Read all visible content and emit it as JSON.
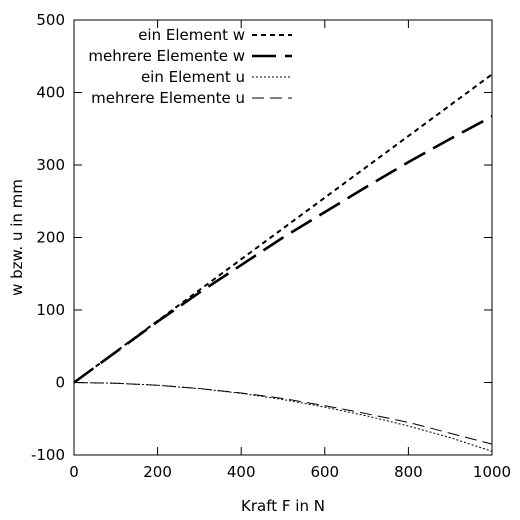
{
  "chart_data": {
    "type": "line",
    "title": "",
    "xlabel": "Kraft F in N",
    "ylabel": "w bzw. u in mm",
    "xlim": [
      0,
      1000
    ],
    "ylim": [
      -100,
      500
    ],
    "xticks": [
      0,
      200,
      400,
      600,
      800,
      1000
    ],
    "yticks": [
      -100,
      0,
      100,
      200,
      300,
      400,
      500
    ],
    "xtick_labels": [
      "0",
      "200",
      "400",
      "600",
      "800",
      "1000"
    ],
    "ytick_labels": [
      "-100",
      "0",
      "100",
      "200",
      "300",
      "400",
      "500"
    ],
    "grid": false,
    "legend_position": "top-left",
    "series_color": "#000000",
    "series": [
      {
        "name": "ein Element w",
        "style": "short-dash",
        "x": [
          0,
          100,
          200,
          300,
          400,
          500,
          600,
          700,
          800,
          900,
          1000
        ],
        "y": [
          0,
          42.5,
          85,
          127.5,
          170,
          212.5,
          255,
          297.5,
          340,
          382.5,
          425
        ]
      },
      {
        "name": "mehrere Elemente w",
        "style": "long-dash-thick",
        "x": [
          0,
          100,
          200,
          300,
          400,
          500,
          600,
          700,
          800,
          900,
          1000
        ],
        "y": [
          0,
          42,
          84,
          124,
          162,
          200,
          235,
          270,
          304,
          336,
          367
        ]
      },
      {
        "name": "ein Element u",
        "style": "dotted",
        "x": [
          0,
          100,
          200,
          300,
          400,
          500,
          600,
          700,
          800,
          900,
          1000
        ],
        "y": [
          0,
          -1,
          -3.8,
          -8.5,
          -15,
          -23.5,
          -34,
          -46,
          -60,
          -76,
          -95
        ]
      },
      {
        "name": "mehrere Elemente u",
        "style": "long-dash-thin",
        "x": [
          0,
          100,
          200,
          300,
          400,
          500,
          600,
          700,
          800,
          900,
          1000
        ],
        "y": [
          0,
          -1,
          -3.8,
          -8.3,
          -14.5,
          -22,
          -32,
          -43,
          -55,
          -70,
          -85
        ]
      }
    ]
  }
}
